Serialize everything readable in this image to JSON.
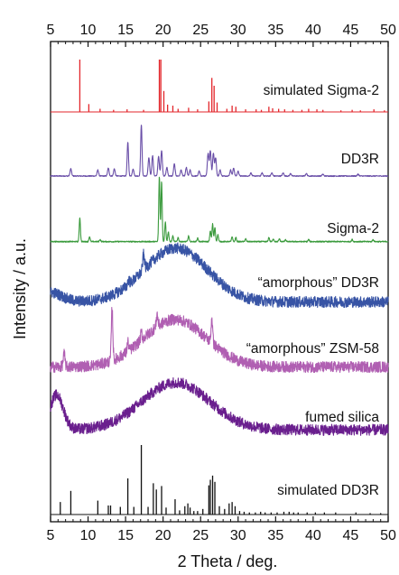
{
  "chart_data": {
    "type": "line",
    "xlabel": "2 Theta / deg.",
    "ylabel": "Intensity / a.u.",
    "xlim": [
      5,
      50
    ],
    "x_ticks": [
      5,
      10,
      15,
      20,
      25,
      30,
      35,
      40,
      45,
      50
    ],
    "x_tick_labels": [
      "5",
      "10",
      "15",
      "20",
      "25",
      "30",
      "35",
      "40",
      "45",
      "50"
    ],
    "grid": false,
    "legend": "none",
    "series": [
      {
        "name": "simulated Sigma-2",
        "color": "#e3262b",
        "kind": "sticks",
        "peaks": [
          [
            8.9,
            1.0
          ],
          [
            10.1,
            0.15
          ],
          [
            11.6,
            0.06
          ],
          [
            13.4,
            0.04
          ],
          [
            15.2,
            0.05
          ],
          [
            17.4,
            0.04
          ],
          [
            19.5,
            1.0
          ],
          [
            19.7,
            1.0
          ],
          [
            20.1,
            0.4
          ],
          [
            20.6,
            0.14
          ],
          [
            21.3,
            0.12
          ],
          [
            22.0,
            0.06
          ],
          [
            23.4,
            0.08
          ],
          [
            24.6,
            0.05
          ],
          [
            26.1,
            0.2
          ],
          [
            26.5,
            0.65
          ],
          [
            26.8,
            0.5
          ],
          [
            27.2,
            0.18
          ],
          [
            28.5,
            0.06
          ],
          [
            29.2,
            0.12
          ],
          [
            29.7,
            0.1
          ],
          [
            31.0,
            0.05
          ],
          [
            32.4,
            0.05
          ],
          [
            33.1,
            0.04
          ],
          [
            34.1,
            0.1
          ],
          [
            34.6,
            0.07
          ],
          [
            35.4,
            0.06
          ],
          [
            36.2,
            0.05
          ],
          [
            37.3,
            0.04
          ],
          [
            38.5,
            0.04
          ],
          [
            39.4,
            0.06
          ],
          [
            40.5,
            0.05
          ],
          [
            41.3,
            0.04
          ],
          [
            43.7,
            0.03
          ],
          [
            45.2,
            0.04
          ],
          [
            46.3,
            0.03
          ],
          [
            48.1,
            0.05
          ],
          [
            49.5,
            0.03
          ]
        ]
      },
      {
        "name": "DD3R",
        "color": "#6a4fa8",
        "kind": "pattern",
        "baseline": 0.03,
        "noise": 0.008,
        "peaks": [
          [
            7.7,
            0.12,
            0.1
          ],
          [
            11.3,
            0.1,
            0.1
          ],
          [
            12.7,
            0.13,
            0.1
          ],
          [
            13.5,
            0.12,
            0.1
          ],
          [
            15.3,
            0.56,
            0.09
          ],
          [
            16.0,
            0.12,
            0.1
          ],
          [
            17.1,
            0.85,
            0.09
          ],
          [
            18.1,
            0.3,
            0.1
          ],
          [
            18.6,
            0.34,
            0.1
          ],
          [
            19.4,
            0.32,
            0.1
          ],
          [
            19.8,
            0.42,
            0.1
          ],
          [
            20.5,
            0.14,
            0.1
          ],
          [
            21.5,
            0.2,
            0.1
          ],
          [
            22.4,
            0.1,
            0.1
          ],
          [
            23.1,
            0.14,
            0.1
          ],
          [
            23.6,
            0.1,
            0.1
          ],
          [
            24.8,
            0.08,
            0.1
          ],
          [
            26.0,
            0.38,
            0.1
          ],
          [
            26.3,
            0.42,
            0.1
          ],
          [
            26.7,
            0.38,
            0.1
          ],
          [
            27.0,
            0.3,
            0.1
          ],
          [
            27.6,
            0.1,
            0.1
          ],
          [
            29.0,
            0.1,
            0.1
          ],
          [
            29.4,
            0.13,
            0.1
          ],
          [
            30.0,
            0.08,
            0.1
          ],
          [
            31.7,
            0.05,
            0.1
          ],
          [
            33.2,
            0.05,
            0.1
          ],
          [
            34.5,
            0.05,
            0.1
          ],
          [
            36.0,
            0.05,
            0.1
          ],
          [
            37.0,
            0.04,
            0.1
          ],
          [
            39.1,
            0.04,
            0.1
          ],
          [
            41.3,
            0.03,
            0.1
          ],
          [
            46.0,
            0.03,
            0.1
          ]
        ]
      },
      {
        "name": "Sigma-2",
        "color": "#3a9a3c",
        "kind": "pattern",
        "baseline": 0.03,
        "noise": 0.008,
        "peaks": [
          [
            8.9,
            0.34,
            0.08
          ],
          [
            10.2,
            0.07,
            0.08
          ],
          [
            11.6,
            0.03,
            0.08
          ],
          [
            19.5,
            0.92,
            0.08
          ],
          [
            19.8,
            0.85,
            0.08
          ],
          [
            20.3,
            0.28,
            0.08
          ],
          [
            20.7,
            0.14,
            0.08
          ],
          [
            21.3,
            0.08,
            0.08
          ],
          [
            22.0,
            0.06,
            0.08
          ],
          [
            23.4,
            0.08,
            0.08
          ],
          [
            24.6,
            0.05,
            0.08
          ],
          [
            26.3,
            0.15,
            0.08
          ],
          [
            26.6,
            0.25,
            0.08
          ],
          [
            26.9,
            0.2,
            0.08
          ],
          [
            27.3,
            0.1,
            0.08
          ],
          [
            29.2,
            0.07,
            0.08
          ],
          [
            29.7,
            0.06,
            0.08
          ],
          [
            31.0,
            0.04,
            0.08
          ],
          [
            34.1,
            0.06,
            0.08
          ],
          [
            34.7,
            0.04,
            0.08
          ],
          [
            35.5,
            0.04,
            0.08
          ],
          [
            36.3,
            0.03,
            0.08
          ],
          [
            39.4,
            0.03,
            0.08
          ],
          [
            45.2,
            0.03,
            0.08
          ],
          [
            48.0,
            0.03,
            0.08
          ]
        ]
      },
      {
        "name": "“amorphous” DD3R",
        "color": "#3854a5",
        "kind": "pattern",
        "baseline": 0.06,
        "noise": 0.035,
        "humps": [
          [
            21.7,
            0.34,
            4.2
          ],
          [
            5.0,
            0.06,
            1.5
          ]
        ],
        "peaks": [
          [
            17.4,
            0.1,
            0.12
          ],
          [
            15.4,
            0.03,
            0.12
          ]
        ]
      },
      {
        "name": "“amorphous” ZSM-58",
        "color": "#b05fb2",
        "kind": "pattern",
        "baseline": 0.06,
        "noise": 0.035,
        "humps": [
          [
            21.6,
            0.3,
            4.2
          ]
        ],
        "peaks": [
          [
            6.8,
            0.08,
            0.12
          ],
          [
            13.2,
            0.33,
            0.1
          ],
          [
            15.3,
            0.06,
            0.1
          ],
          [
            17.1,
            0.05,
            0.1
          ],
          [
            19.2,
            0.08,
            0.1
          ],
          [
            26.5,
            0.16,
            0.1
          ]
        ]
      },
      {
        "name": "fumed silica",
        "color": "#6a1f8e",
        "kind": "pattern",
        "baseline": 0.05,
        "noise": 0.035,
        "humps": [
          [
            21.7,
            0.3,
            4.5
          ],
          [
            5.8,
            0.22,
            0.9
          ]
        ],
        "peaks": []
      },
      {
        "name": "simulated DD3R",
        "color": "#111111",
        "kind": "sticks",
        "peaks": [
          [
            6.3,
            0.18
          ],
          [
            7.7,
            0.34
          ],
          [
            11.3,
            0.2
          ],
          [
            12.7,
            0.13
          ],
          [
            13.0,
            0.13
          ],
          [
            14.3,
            0.11
          ],
          [
            15.3,
            0.52
          ],
          [
            16.1,
            0.11
          ],
          [
            17.1,
            1.0
          ],
          [
            18.0,
            0.11
          ],
          [
            18.7,
            0.45
          ],
          [
            19.1,
            0.36
          ],
          [
            19.8,
            0.41
          ],
          [
            20.4,
            0.1
          ],
          [
            21.6,
            0.22
          ],
          [
            22.2,
            0.06
          ],
          [
            22.9,
            0.12
          ],
          [
            23.3,
            0.16
          ],
          [
            23.6,
            0.1
          ],
          [
            24.1,
            0.05
          ],
          [
            24.6,
            0.05
          ],
          [
            25.3,
            0.08
          ],
          [
            26.1,
            0.42
          ],
          [
            26.3,
            0.5
          ],
          [
            26.6,
            0.56
          ],
          [
            26.9,
            0.47
          ],
          [
            27.5,
            0.12
          ],
          [
            28.2,
            0.08
          ],
          [
            28.8,
            0.16
          ],
          [
            29.2,
            0.18
          ],
          [
            29.6,
            0.12
          ],
          [
            30.2,
            0.05
          ],
          [
            30.8,
            0.04
          ],
          [
            31.5,
            0.03
          ],
          [
            32.3,
            0.03
          ],
          [
            33.0,
            0.04
          ],
          [
            33.6,
            0.03
          ],
          [
            34.4,
            0.03
          ],
          [
            35.2,
            0.03
          ],
          [
            36.1,
            0.04
          ],
          [
            36.8,
            0.04
          ],
          [
            37.4,
            0.03
          ],
          [
            38.0,
            0.03
          ],
          [
            39.2,
            0.03
          ],
          [
            40.3,
            0.03
          ],
          [
            41.5,
            0.03
          ],
          [
            43.0,
            0.03
          ],
          [
            45.7,
            0.03
          ],
          [
            47.6,
            0.02
          ],
          [
            49.0,
            0.02
          ]
        ]
      }
    ]
  }
}
